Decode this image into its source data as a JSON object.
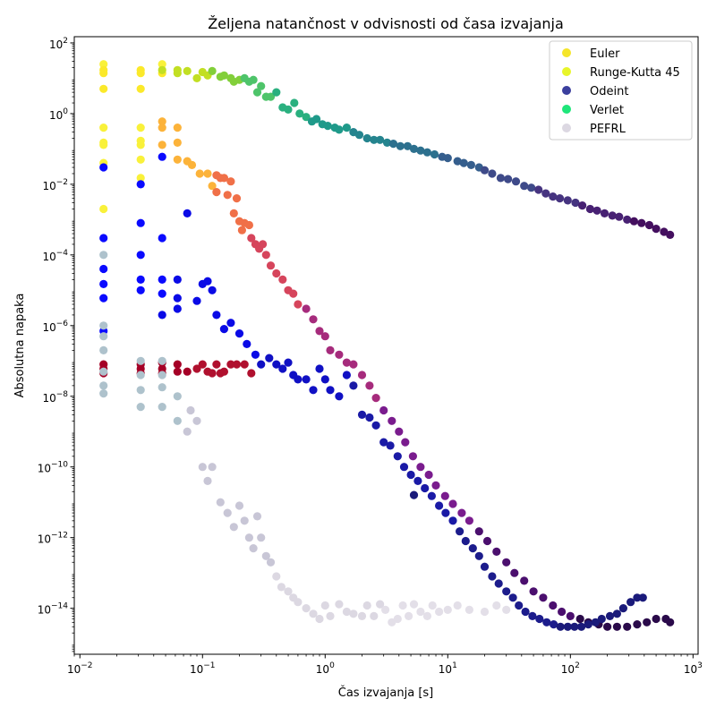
{
  "chart_data": {
    "type": "scatter",
    "title": "Željena natančnost v odvisnosti od časa izvajanja",
    "xlabel": "Čas izvajanja [s]",
    "ylabel": "Absolutna napaka",
    "xscale": "log",
    "yscale": "log",
    "xlim": [
      0.009,
      1100
    ],
    "ylim": [
      5e-16,
      150
    ],
    "x_ticks": [
      {
        "value": 0.01,
        "base": "10",
        "exp": "−2"
      },
      {
        "value": 0.1,
        "base": "10",
        "exp": "−1"
      },
      {
        "value": 1,
        "base": "10",
        "exp": "0"
      },
      {
        "value": 10,
        "base": "10",
        "exp": "1"
      },
      {
        "value": 100,
        "base": "10",
        "exp": "2"
      },
      {
        "value": 1000,
        "base": "10",
        "exp": "3"
      }
    ],
    "y_ticks": [
      {
        "value": 1e-14,
        "base": "10",
        "exp": "−14"
      },
      {
        "value": 1e-12,
        "base": "10",
        "exp": "−12"
      },
      {
        "value": 1e-10,
        "base": "10",
        "exp": "−10"
      },
      {
        "value": 1e-08,
        "base": "10",
        "exp": "−8"
      },
      {
        "value": 1e-06,
        "base": "10",
        "exp": "−6"
      },
      {
        "value": 0.0001,
        "base": "10",
        "exp": "−4"
      },
      {
        "value": 0.01,
        "base": "10",
        "exp": "−2"
      },
      {
        "value": 1,
        "base": "10",
        "exp": "0"
      },
      {
        "value": 100,
        "base": "10",
        "exp": "2"
      }
    ],
    "legend_position": "top-right",
    "grid": false,
    "series": [
      {
        "name": "Euler",
        "legend_color": "#f5e52a",
        "colormap": [
          "#f9f13a",
          "#fcb33a",
          "#f07048",
          "#d6455c",
          "#a62b7c",
          "#7a1c8e",
          "#4b0f6e",
          "#2a0a4a"
        ],
        "x": [
          0.0156,
          0.0156,
          0.0156,
          0.0156,
          0.0156,
          0.0156,
          0.0313,
          0.0313,
          0.0313,
          0.0313,
          0.0313,
          0.0469,
          0.0469,
          0.0469,
          0.0469,
          0.0625,
          0.0625,
          0.0625,
          0.075,
          0.082,
          0.095,
          0.11,
          0.12,
          0.13,
          0.13,
          0.14,
          0.15,
          0.16,
          0.17,
          0.18,
          0.19,
          0.2,
          0.21,
          0.22,
          0.24,
          0.25,
          0.27,
          0.29,
          0.31,
          0.33,
          0.36,
          0.4,
          0.45,
          0.5,
          0.55,
          0.6,
          0.7,
          0.8,
          0.9,
          1.0,
          1.1,
          1.3,
          1.5,
          1.7,
          2.0,
          2.3,
          2.6,
          3.0,
          3.5,
          4.0,
          4.5,
          5.2,
          6.0,
          7.0,
          8.0,
          9.5,
          11,
          13,
          15,
          18,
          21,
          25,
          30,
          35,
          42,
          50,
          60,
          72,
          85,
          100,
          120,
          140,
          170,
          200,
          240,
          290,
          350,
          420,
          500,
          600,
          650
        ],
        "y": [
          25,
          0.4,
          0.15,
          0.13,
          0.04,
          0.002,
          0.4,
          0.17,
          0.13,
          0.05,
          0.015,
          25,
          0.4,
          0.13,
          0.6,
          0.4,
          0.15,
          0.05,
          0.045,
          0.035,
          0.02,
          0.02,
          0.009,
          0.018,
          0.006,
          0.015,
          0.015,
          0.005,
          0.012,
          0.0015,
          0.004,
          0.0009,
          0.0005,
          0.0008,
          0.0007,
          0.0003,
          0.0002,
          0.00015,
          0.0002,
          0.0001,
          5e-05,
          3e-05,
          2e-05,
          1e-05,
          8e-06,
          4e-06,
          3e-06,
          1.5e-06,
          7e-07,
          5e-07,
          2e-07,
          1.5e-07,
          9e-08,
          8e-08,
          4e-08,
          2e-08,
          9e-09,
          4e-09,
          2e-09,
          1e-09,
          5e-10,
          2e-10,
          1e-10,
          6e-11,
          3e-11,
          1.5e-11,
          9e-12,
          5e-12,
          3e-12,
          1.5e-12,
          8e-13,
          4e-13,
          2e-13,
          1e-13,
          6e-14,
          3e-14,
          2e-14,
          1.2e-14,
          8e-15,
          6e-15,
          5e-15,
          4e-15,
          3.5e-15,
          3e-15,
          3e-15,
          3e-15,
          3.5e-15,
          4e-15,
          5e-15,
          5e-15,
          4e-15
        ]
      },
      {
        "name": "Runge-Kutta 45",
        "legend_color": "#e8f52a",
        "colormap": [
          "#fbe92a",
          "#c2df23",
          "#82cf3a",
          "#4ec46a",
          "#2ab07f",
          "#1f9a8a",
          "#25848e",
          "#2d708e",
          "#355e8d",
          "#3e4a89",
          "#463480",
          "#482173",
          "#440f5f"
        ],
        "x": [
          0.0156,
          0.0156,
          0.0156,
          0.0313,
          0.0313,
          0.0313,
          0.0469,
          0.0469,
          0.0625,
          0.0625,
          0.075,
          0.09,
          0.1,
          0.11,
          0.12,
          0.14,
          0.15,
          0.17,
          0.18,
          0.2,
          0.22,
          0.24,
          0.26,
          0.28,
          0.3,
          0.33,
          0.36,
          0.4,
          0.45,
          0.5,
          0.56,
          0.62,
          0.7,
          0.78,
          0.85,
          0.95,
          1.05,
          1.2,
          1.3,
          1.5,
          1.7,
          1.9,
          2.2,
          2.5,
          2.8,
          3.2,
          3.6,
          4.1,
          4.7,
          5.3,
          6.0,
          6.8,
          7.8,
          9.0,
          10,
          12,
          13.5,
          15.5,
          18,
          20,
          23,
          27,
          31,
          36,
          42,
          48,
          55,
          63,
          72,
          82,
          95,
          110,
          125,
          145,
          165,
          190,
          220,
          250,
          290,
          330,
          380,
          440,
          500,
          580,
          650
        ],
        "y": [
          14,
          17,
          5,
          14,
          17,
          5,
          14,
          17,
          14,
          17,
          16,
          10,
          15,
          12,
          16,
          11,
          12,
          10,
          8,
          9,
          10,
          8,
          9,
          4,
          6,
          3,
          3,
          4,
          1.5,
          1.3,
          2,
          1,
          0.8,
          0.6,
          0.7,
          0.5,
          0.45,
          0.4,
          0.35,
          0.4,
          0.3,
          0.25,
          0.2,
          0.18,
          0.18,
          0.15,
          0.14,
          0.12,
          0.12,
          0.1,
          0.09,
          0.08,
          0.07,
          0.06,
          0.055,
          0.045,
          0.04,
          0.035,
          0.03,
          0.025,
          0.02,
          0.015,
          0.014,
          0.012,
          0.009,
          0.008,
          0.007,
          0.0055,
          0.0045,
          0.004,
          0.0035,
          0.003,
          0.0025,
          0.002,
          0.0018,
          0.0015,
          0.0013,
          0.0012,
          0.001,
          0.0009,
          0.0008,
          0.0007,
          0.00055,
          0.00045,
          0.00037
        ]
      },
      {
        "name": "Odeint",
        "legend_color": "#3b3f9e",
        "colormap": [
          "#0a0aff",
          "#0a0ae6",
          "#1010c4",
          "#1a1aa6",
          "#1c1c8c",
          "#1a1a7a"
        ],
        "x": [
          0.0156,
          0.0156,
          0.0156,
          0.0156,
          0.0156,
          0.0156,
          0.0313,
          0.0313,
          0.0313,
          0.0313,
          0.0313,
          0.0469,
          0.0469,
          0.0469,
          0.0469,
          0.0469,
          0.0625,
          0.0625,
          0.0625,
          0.075,
          0.09,
          0.1,
          0.11,
          0.12,
          0.13,
          0.15,
          0.17,
          0.2,
          0.23,
          0.27,
          0.3,
          0.35,
          0.4,
          0.45,
          0.5,
          0.55,
          0.6,
          0.7,
          0.8,
          0.9,
          1.0,
          1.1,
          1.3,
          1.5,
          1.7,
          2.0,
          2.3,
          2.6,
          3.0,
          3.4,
          3.9,
          4.4,
          5.0,
          5.7,
          6.5,
          7.4,
          8.5,
          9.6,
          11,
          12.5,
          14,
          16,
          18,
          20,
          23,
          26,
          30,
          34,
          38,
          43,
          49,
          56,
          64,
          73,
          83,
          95,
          108,
          123,
          140,
          160,
          180,
          210,
          240,
          270,
          310,
          350,
          390,
          5.3
        ],
        "y": [
          0.03,
          0.0003,
          4e-05,
          6e-06,
          7e-07,
          1.5e-05,
          0.01,
          0.0008,
          2e-05,
          1e-05,
          0.0001,
          0.06,
          0.0003,
          2e-05,
          8e-06,
          2e-06,
          2e-05,
          6e-06,
          3e-06,
          0.0015,
          5e-06,
          1.5e-05,
          1.8e-05,
          1e-05,
          2e-06,
          8e-07,
          1.2e-06,
          6e-07,
          3e-07,
          1.5e-07,
          8e-08,
          1.2e-07,
          8e-08,
          6e-08,
          9e-08,
          4e-08,
          3e-08,
          3e-08,
          1.5e-08,
          6e-08,
          3e-08,
          1.5e-08,
          1e-08,
          4e-08,
          2e-08,
          3e-09,
          2.5e-09,
          1.5e-09,
          5e-10,
          4e-10,
          2e-10,
          1e-10,
          6e-11,
          4e-11,
          2.5e-11,
          1.5e-11,
          8e-12,
          5e-12,
          3e-12,
          1.5e-12,
          8e-13,
          5e-13,
          3e-13,
          1.5e-13,
          8e-14,
          5e-14,
          3e-14,
          2e-14,
          1.2e-14,
          8e-15,
          6e-15,
          5e-15,
          4e-15,
          3.5e-15,
          3e-15,
          3e-15,
          3e-15,
          3e-15,
          3.5e-15,
          4e-15,
          5e-15,
          6e-15,
          7e-15,
          1e-14,
          1.5e-14,
          2e-14,
          2e-14,
          1.6e-11
        ]
      },
      {
        "name": "Verlet",
        "legend_color": "#1ee67a",
        "colormap": [
          "#a50026",
          "#b0102e"
        ],
        "x": [
          0.0156,
          0.0156,
          0.0156,
          0.0313,
          0.0313,
          0.0313,
          0.0469,
          0.0469,
          0.0469,
          0.0625,
          0.0625,
          0.075,
          0.09,
          0.1,
          0.11,
          0.12,
          0.13,
          0.14,
          0.15,
          0.17,
          0.19,
          0.22,
          0.25
        ],
        "y": [
          8e-08,
          6e-08,
          4.5e-08,
          8e-08,
          6e-08,
          4.5e-08,
          9e-08,
          6e-08,
          4.5e-08,
          8e-08,
          5e-08,
          5e-08,
          6e-08,
          8e-08,
          5e-08,
          4.5e-08,
          8e-08,
          4.5e-08,
          5e-08,
          8e-08,
          8e-08,
          8e-08,
          4.5e-08
        ]
      },
      {
        "name": "PEFRL",
        "legend_color": "#dcd8e2",
        "colormap": [
          "#aec2cc",
          "#c8c6d6",
          "#dcd8e2",
          "#e3dfe8"
        ],
        "x": [
          0.0156,
          0.0156,
          0.0156,
          0.0156,
          0.0156,
          0.0156,
          0.0156,
          0.0313,
          0.0313,
          0.0313,
          0.0313,
          0.0469,
          0.0469,
          0.0469,
          0.0469,
          0.0625,
          0.0625,
          0.075,
          0.08,
          0.09,
          0.1,
          0.11,
          0.12,
          0.14,
          0.16,
          0.18,
          0.2,
          0.22,
          0.24,
          0.26,
          0.28,
          0.3,
          0.33,
          0.36,
          0.4,
          0.44,
          0.5,
          0.55,
          0.6,
          0.7,
          0.8,
          0.9,
          1.0,
          1.1,
          1.3,
          1.5,
          1.7,
          2.0,
          2.2,
          2.5,
          2.8,
          3.1,
          3.5,
          3.9,
          4.3,
          4.8,
          5.3,
          6.0,
          6.8,
          7.5,
          8.5,
          10,
          12,
          15,
          20,
          25,
          30
        ],
        "y": [
          1e-06,
          5e-07,
          2e-07,
          5e-08,
          2e-08,
          1.2e-08,
          0.0001,
          1e-07,
          4e-08,
          1.5e-08,
          5e-09,
          1e-07,
          4e-08,
          1.8e-08,
          5e-09,
          1e-08,
          2e-09,
          1e-09,
          4e-09,
          2e-09,
          1e-10,
          4e-11,
          1e-10,
          1e-11,
          5e-12,
          2e-12,
          8e-12,
          3e-12,
          1e-12,
          5e-13,
          4e-12,
          1e-12,
          3e-13,
          2e-13,
          8e-14,
          4e-14,
          3e-14,
          2e-14,
          1.5e-14,
          1e-14,
          7e-15,
          5e-15,
          1.2e-14,
          6e-15,
          1.3e-14,
          8e-15,
          7e-15,
          6e-15,
          1.2e-14,
          6e-15,
          1.3e-14,
          9e-15,
          4e-15,
          5e-15,
          1.2e-14,
          6e-15,
          1.3e-14,
          8e-15,
          6e-15,
          1.2e-14,
          8e-15,
          9e-15,
          1.2e-14,
          9e-15,
          8e-15,
          1.2e-14,
          9e-15
        ]
      }
    ]
  }
}
